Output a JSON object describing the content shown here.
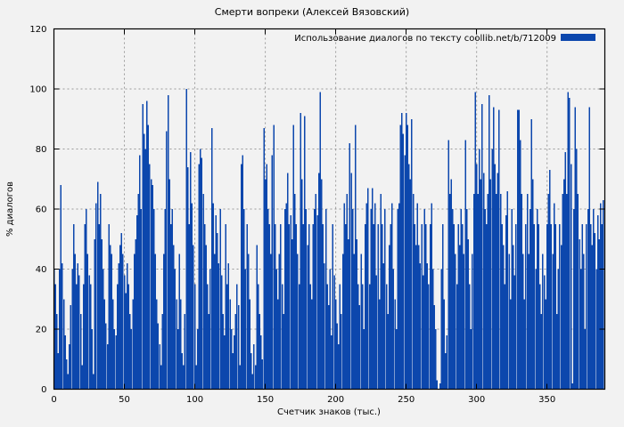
{
  "chart_data": {
    "type": "bar",
    "style": "impulses",
    "title": "Смерти вопреки (Алексей Вязовский)",
    "legend": "Использование диалогов по тексту coollib.net/b/712009",
    "legend_position": "top-right",
    "xlabel": "Счетчик знаков (тыс.)",
    "ylabel": "% диалогов",
    "xlim": [
      0,
      391
    ],
    "ylim": [
      0,
      120
    ],
    "xticks": [
      0,
      50,
      100,
      150,
      200,
      250,
      300,
      350
    ],
    "yticks": [
      0,
      20,
      40,
      60,
      80,
      100,
      120
    ],
    "grid": true,
    "colors": {
      "bar": "#0c47ad",
      "grid": "#9a9a9a",
      "axis": "#000000",
      "background": "#f2f2f2"
    },
    "x_start": 0,
    "x_step": 1,
    "values": [
      40,
      35,
      25,
      12,
      40,
      68,
      42,
      30,
      18,
      10,
      5,
      15,
      28,
      40,
      55,
      45,
      35,
      42,
      38,
      25,
      8,
      35,
      55,
      60,
      45,
      38,
      35,
      20,
      5,
      50,
      62,
      69,
      55,
      65,
      50,
      40,
      30,
      22,
      15,
      55,
      48,
      45,
      30,
      20,
      18,
      35,
      42,
      48,
      52,
      45,
      38,
      32,
      42,
      35,
      25,
      20,
      30,
      45,
      50,
      58,
      65,
      78,
      60,
      95,
      85,
      80,
      96,
      88,
      75,
      70,
      68,
      60,
      45,
      30,
      22,
      15,
      8,
      25,
      45,
      60,
      86,
      98,
      70,
      55,
      60,
      48,
      40,
      30,
      20,
      45,
      30,
      12,
      8,
      25,
      100,
      74,
      55,
      79,
      62,
      48,
      35,
      8,
      20,
      75,
      80,
      77,
      65,
      55,
      48,
      35,
      25,
      40,
      87,
      62,
      45,
      58,
      52,
      42,
      60,
      38,
      25,
      18,
      55,
      35,
      42,
      30,
      20,
      12,
      18,
      25,
      35,
      28,
      8,
      75,
      78,
      60,
      40,
      55,
      45,
      30,
      12,
      5,
      15,
      8,
      48,
      35,
      25,
      18,
      10,
      87,
      70,
      75,
      60,
      55,
      45,
      78,
      88,
      55,
      40,
      30,
      45,
      55,
      35,
      25,
      60,
      62,
      72,
      55,
      58,
      50,
      88,
      65,
      55,
      45,
      35,
      92,
      70,
      55,
      91,
      60,
      48,
      55,
      35,
      30,
      55,
      60,
      65,
      58,
      72,
      99,
      70,
      55,
      42,
      60,
      35,
      28,
      40,
      18,
      55,
      38,
      30,
      22,
      15,
      35,
      25,
      45,
      62,
      55,
      65,
      50,
      82,
      72,
      60,
      45,
      88,
      50,
      35,
      28,
      45,
      35,
      20,
      55,
      62,
      67,
      35,
      60,
      67,
      55,
      62,
      38,
      55,
      30,
      65,
      55,
      42,
      60,
      35,
      25,
      48,
      55,
      62,
      40,
      30,
      20,
      60,
      62,
      88,
      92,
      85,
      78,
      92,
      88,
      75,
      70,
      90,
      65,
      55,
      48,
      62,
      48,
      42,
      55,
      38,
      60,
      55,
      42,
      35,
      55,
      62,
      40,
      28,
      20,
      3,
      0,
      2,
      40,
      55,
      30,
      12,
      18,
      83,
      65,
      70,
      60,
      55,
      45,
      35,
      55,
      48,
      60,
      55,
      45,
      83,
      60,
      50,
      35,
      20,
      45,
      65,
      99,
      75,
      65,
      80,
      70,
      95,
      72,
      60,
      55,
      65,
      98,
      70,
      80,
      94,
      75,
      65,
      72,
      93,
      65,
      55,
      48,
      35,
      58,
      66,
      45,
      30,
      60,
      48,
      38,
      55,
      93,
      93,
      83,
      65,
      45,
      30,
      55,
      65,
      45,
      60,
      90,
      70,
      55,
      40,
      60,
      55,
      35,
      25,
      45,
      38,
      30,
      55,
      65,
      73,
      55,
      45,
      62,
      55,
      25,
      40,
      55,
      48,
      65,
      70,
      79,
      65,
      99,
      97,
      75,
      2,
      60,
      94,
      80,
      65,
      50,
      40,
      55,
      45,
      20,
      55,
      60,
      94,
      55,
      48,
      60,
      52,
      40,
      58,
      50,
      62,
      55,
      63
    ]
  }
}
